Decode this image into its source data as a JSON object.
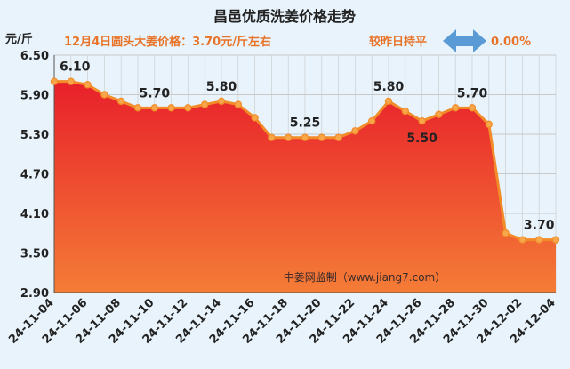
{
  "colors": {
    "background": "#e8f3fb",
    "line": "#f28c28",
    "area_top": "#e8202a",
    "area_bottom": "#f47c36",
    "title_text": "#222222",
    "subtitle_text": "#e8742a",
    "arrow": "#5b9bd5",
    "grid": "#c9c9c9"
  },
  "chart_data": {
    "type": "area",
    "title": "昌邑优质洗姜价格走势",
    "ylabel": "元/斤",
    "subtitle": "12月4日圆头大姜价格：3.70元/斤左右",
    "compare_label": "较昨日持平",
    "compare_value": "0.00%",
    "watermark": "中姜网监制（www.jiang7.com）",
    "ylim": [
      2.9,
      6.5
    ],
    "yticks": [
      "6.50",
      "5.90",
      "5.30",
      "4.70",
      "4.10",
      "3.50",
      "2.90"
    ],
    "xticks": [
      "24-11-04",
      "24-11-06",
      "24-11-08",
      "24-11-10",
      "24-11-12",
      "24-11-14",
      "24-11-16",
      "24-11-18",
      "24-11-20",
      "24-11-22",
      "24-11-24",
      "24-11-26",
      "24-11-28",
      "24-11-30",
      "24-12-02",
      "24-12-04"
    ],
    "x": [
      "24-11-04",
      "24-11-05",
      "24-11-06",
      "24-11-07",
      "24-11-08",
      "24-11-09",
      "24-11-10",
      "24-11-11",
      "24-11-12",
      "24-11-13",
      "24-11-14",
      "24-11-15",
      "24-11-16",
      "24-11-17",
      "24-11-18",
      "24-11-19",
      "24-11-20",
      "24-11-21",
      "24-11-22",
      "24-11-23",
      "24-11-24",
      "24-11-25",
      "24-11-26",
      "24-11-27",
      "24-11-28",
      "24-11-29",
      "24-11-30",
      "24-12-01",
      "24-12-02",
      "24-12-03",
      "24-12-04"
    ],
    "values": [
      6.1,
      6.1,
      6.05,
      5.9,
      5.8,
      5.7,
      5.7,
      5.7,
      5.7,
      5.75,
      5.8,
      5.75,
      5.55,
      5.25,
      5.25,
      5.25,
      5.25,
      5.25,
      5.35,
      5.5,
      5.8,
      5.65,
      5.5,
      5.6,
      5.7,
      5.7,
      5.45,
      3.8,
      3.7,
      3.7,
      3.7
    ],
    "data_labels": [
      {
        "index": 0,
        "text": "6.10"
      },
      {
        "index": 6,
        "text": "5.70"
      },
      {
        "index": 10,
        "text": "5.80"
      },
      {
        "index": 15,
        "text": "5.25"
      },
      {
        "index": 20,
        "text": "5.80"
      },
      {
        "index": 22,
        "text": "5.50"
      },
      {
        "index": 25,
        "text": "5.70"
      },
      {
        "index": 29,
        "text": "3.70"
      }
    ]
  }
}
